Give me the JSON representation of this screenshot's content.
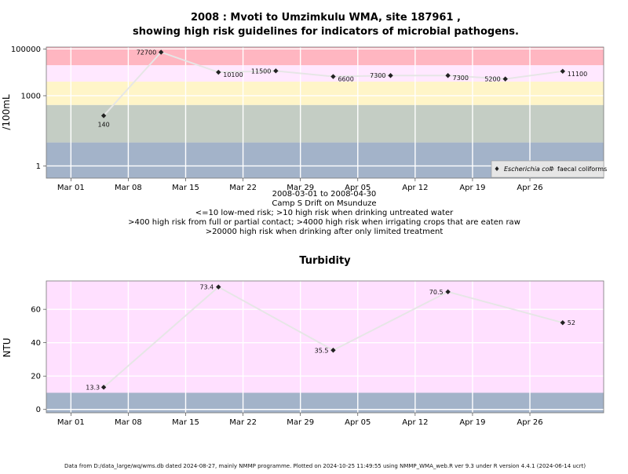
{
  "colors": {
    "bg": "#ffffff",
    "risk_extreme": "#ffb6c1",
    "risk_high_contact": "#ffe8ff",
    "risk_irrigation": "#fff5c8",
    "risk_moderate": "#c4cdc4",
    "risk_low": "#a3b3c9",
    "turbidity_high": "#ffe0ff",
    "turbidity_low": "#a3b3c9",
    "line": "#e6e6e6",
    "point": "#222222",
    "grid": "#ffffff"
  },
  "header": {
    "title_line1": "2008 : Mvoti to Umzimkulu WMA, site 187961 ,",
    "title_line2": "showing high risk guidelines for indicators of microbial pathogens."
  },
  "notes": {
    "date_range": "2008-03-01 to 2008-04-30",
    "site_name": "Camp S Drift on Msunduze",
    "guideline_1": "<=10 low-med risk; >10 high risk when drinking untreated water",
    "guideline_2": ">400 high risk from full or partial contact; >4000 high risk when irrigating crops that are eaten raw",
    "guideline_3": ">20000 high risk when drinking after only limited treatment"
  },
  "footer": "Data from D:/data_large/wq/wms.db dated 2024-08-27, mainly NMMP programme. Plotted on 2024-10-25 11:49:55 using NMMP_WMA_web.R ver 9.3 under R version 4.4.1 (2024-06-14 ucrt)",
  "chart_data": [
    {
      "type": "line",
      "ylabel": "/100mL",
      "y_scale": "log",
      "xlim": [
        "2008-02-27",
        "2008-05-05"
      ],
      "ylim": [
        0.3,
        120000
      ],
      "x_ticks": [
        "Mar 01",
        "Mar 08",
        "Mar 15",
        "Mar 22",
        "Mar 29",
        "Apr 05",
        "Apr 12",
        "Apr 19",
        "Apr 26"
      ],
      "x_tick_dates": [
        "2008-03-01",
        "2008-03-08",
        "2008-03-15",
        "2008-03-22",
        "2008-03-29",
        "2008-04-05",
        "2008-04-12",
        "2008-04-19",
        "2008-04-26"
      ],
      "y_ticks": [
        1,
        1000,
        100000
      ],
      "y_tick_labels": [
        "1",
        "1000",
        "100000"
      ],
      "bands": [
        {
          "from": 20000,
          "to": 120000,
          "color": "#ffb6c1"
        },
        {
          "from": 4000,
          "to": 20000,
          "color": "#ffe8ff"
        },
        {
          "from": 400,
          "to": 4000,
          "color": "#fff5c8"
        },
        {
          "from": 10,
          "to": 400,
          "color": "#c4cdc4"
        },
        {
          "from": 0.3,
          "to": 10,
          "color": "#a3b3c9"
        }
      ],
      "grid": true,
      "legend": {
        "placement": "bottom-right",
        "entries": [
          {
            "label": "Escherichia coli",
            "marker": "filled-diamond"
          },
          {
            "label": "faecal coliforms",
            "marker": "open-circle"
          }
        ]
      },
      "series": [
        {
          "name": "Escherichia coli",
          "points": [
            {
              "x": "2008-03-05",
              "y": 140,
              "label": "140"
            },
            {
              "x": "2008-03-12",
              "y": 72700,
              "label": "72700"
            },
            {
              "x": "2008-03-19",
              "y": 10100,
              "label": "10100"
            },
            {
              "x": "2008-03-26",
              "y": 11500,
              "label": "11500"
            },
            {
              "x": "2008-04-02",
              "y": 6600,
              "label": "6600"
            },
            {
              "x": "2008-04-09",
              "y": 7300,
              "label": "7300"
            },
            {
              "x": "2008-04-16",
              "y": 7300,
              "label": "7300"
            },
            {
              "x": "2008-04-23",
              "y": 5200,
              "label": "5200"
            },
            {
              "x": "2008-04-30",
              "y": 11100,
              "label": "11100"
            }
          ]
        }
      ]
    },
    {
      "type": "line",
      "title": "Turbidity",
      "ylabel": "NTU",
      "y_scale": "linear",
      "xlim": [
        "2008-02-27",
        "2008-05-05"
      ],
      "ylim": [
        -2,
        77
      ],
      "x_ticks": [
        "Mar 01",
        "Mar 08",
        "Mar 15",
        "Mar 22",
        "Mar 29",
        "Apr 05",
        "Apr 12",
        "Apr 19",
        "Apr 26"
      ],
      "x_tick_dates": [
        "2008-03-01",
        "2008-03-08",
        "2008-03-15",
        "2008-03-22",
        "2008-03-29",
        "2008-04-05",
        "2008-04-12",
        "2008-04-19",
        "2008-04-26"
      ],
      "y_ticks": [
        0,
        20,
        40,
        60
      ],
      "y_tick_labels": [
        "0",
        "20",
        "40",
        "60"
      ],
      "bands": [
        {
          "from": 10,
          "to": 77,
          "color": "#ffe0ff"
        },
        {
          "from": -2,
          "to": 10,
          "color": "#a3b3c9"
        }
      ],
      "grid": true,
      "series": [
        {
          "name": "",
          "points": [
            {
              "x": "2008-03-05",
              "y": 13.3,
              "label": "13.3"
            },
            {
              "x": "2008-03-19",
              "y": 73.4,
              "label": "73.4"
            },
            {
              "x": "2008-04-02",
              "y": 35.5,
              "label": "35.5"
            },
            {
              "x": "2008-04-16",
              "y": 70.5,
              "label": "70.5"
            },
            {
              "x": "2008-04-30",
              "y": 52,
              "label": "52"
            }
          ]
        }
      ]
    }
  ]
}
